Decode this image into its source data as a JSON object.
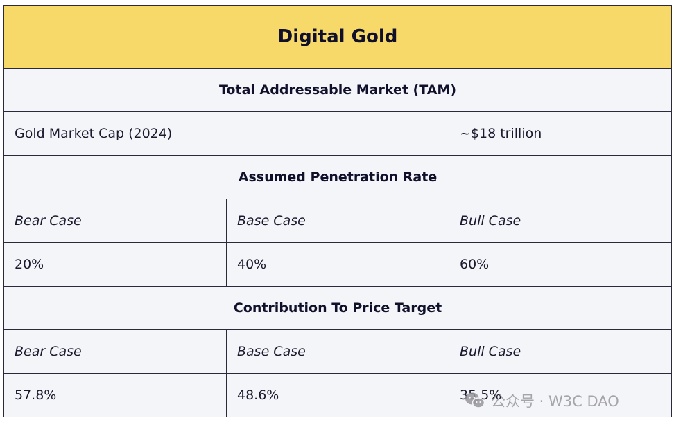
{
  "title": "Digital Gold",
  "tam": {
    "heading": "Total Addressable Market (TAM)",
    "label": "Gold Market Cap (2024)",
    "value": "~$18 trillion"
  },
  "penetration": {
    "heading": "Assumed Penetration Rate",
    "cases": [
      "Bear Case",
      "Base Case",
      "Bull Case"
    ],
    "values": [
      "20%",
      "40%",
      "60%"
    ]
  },
  "contribution": {
    "heading": "Contribution To Price Target",
    "cases": [
      "Bear Case",
      "Base Case",
      "Bull Case"
    ],
    "values": [
      "57.8%",
      "48.6%",
      "35.5%"
    ]
  },
  "watermark": {
    "text": "公众号 · W3C DAO",
    "icon": "wechat-icon"
  }
}
